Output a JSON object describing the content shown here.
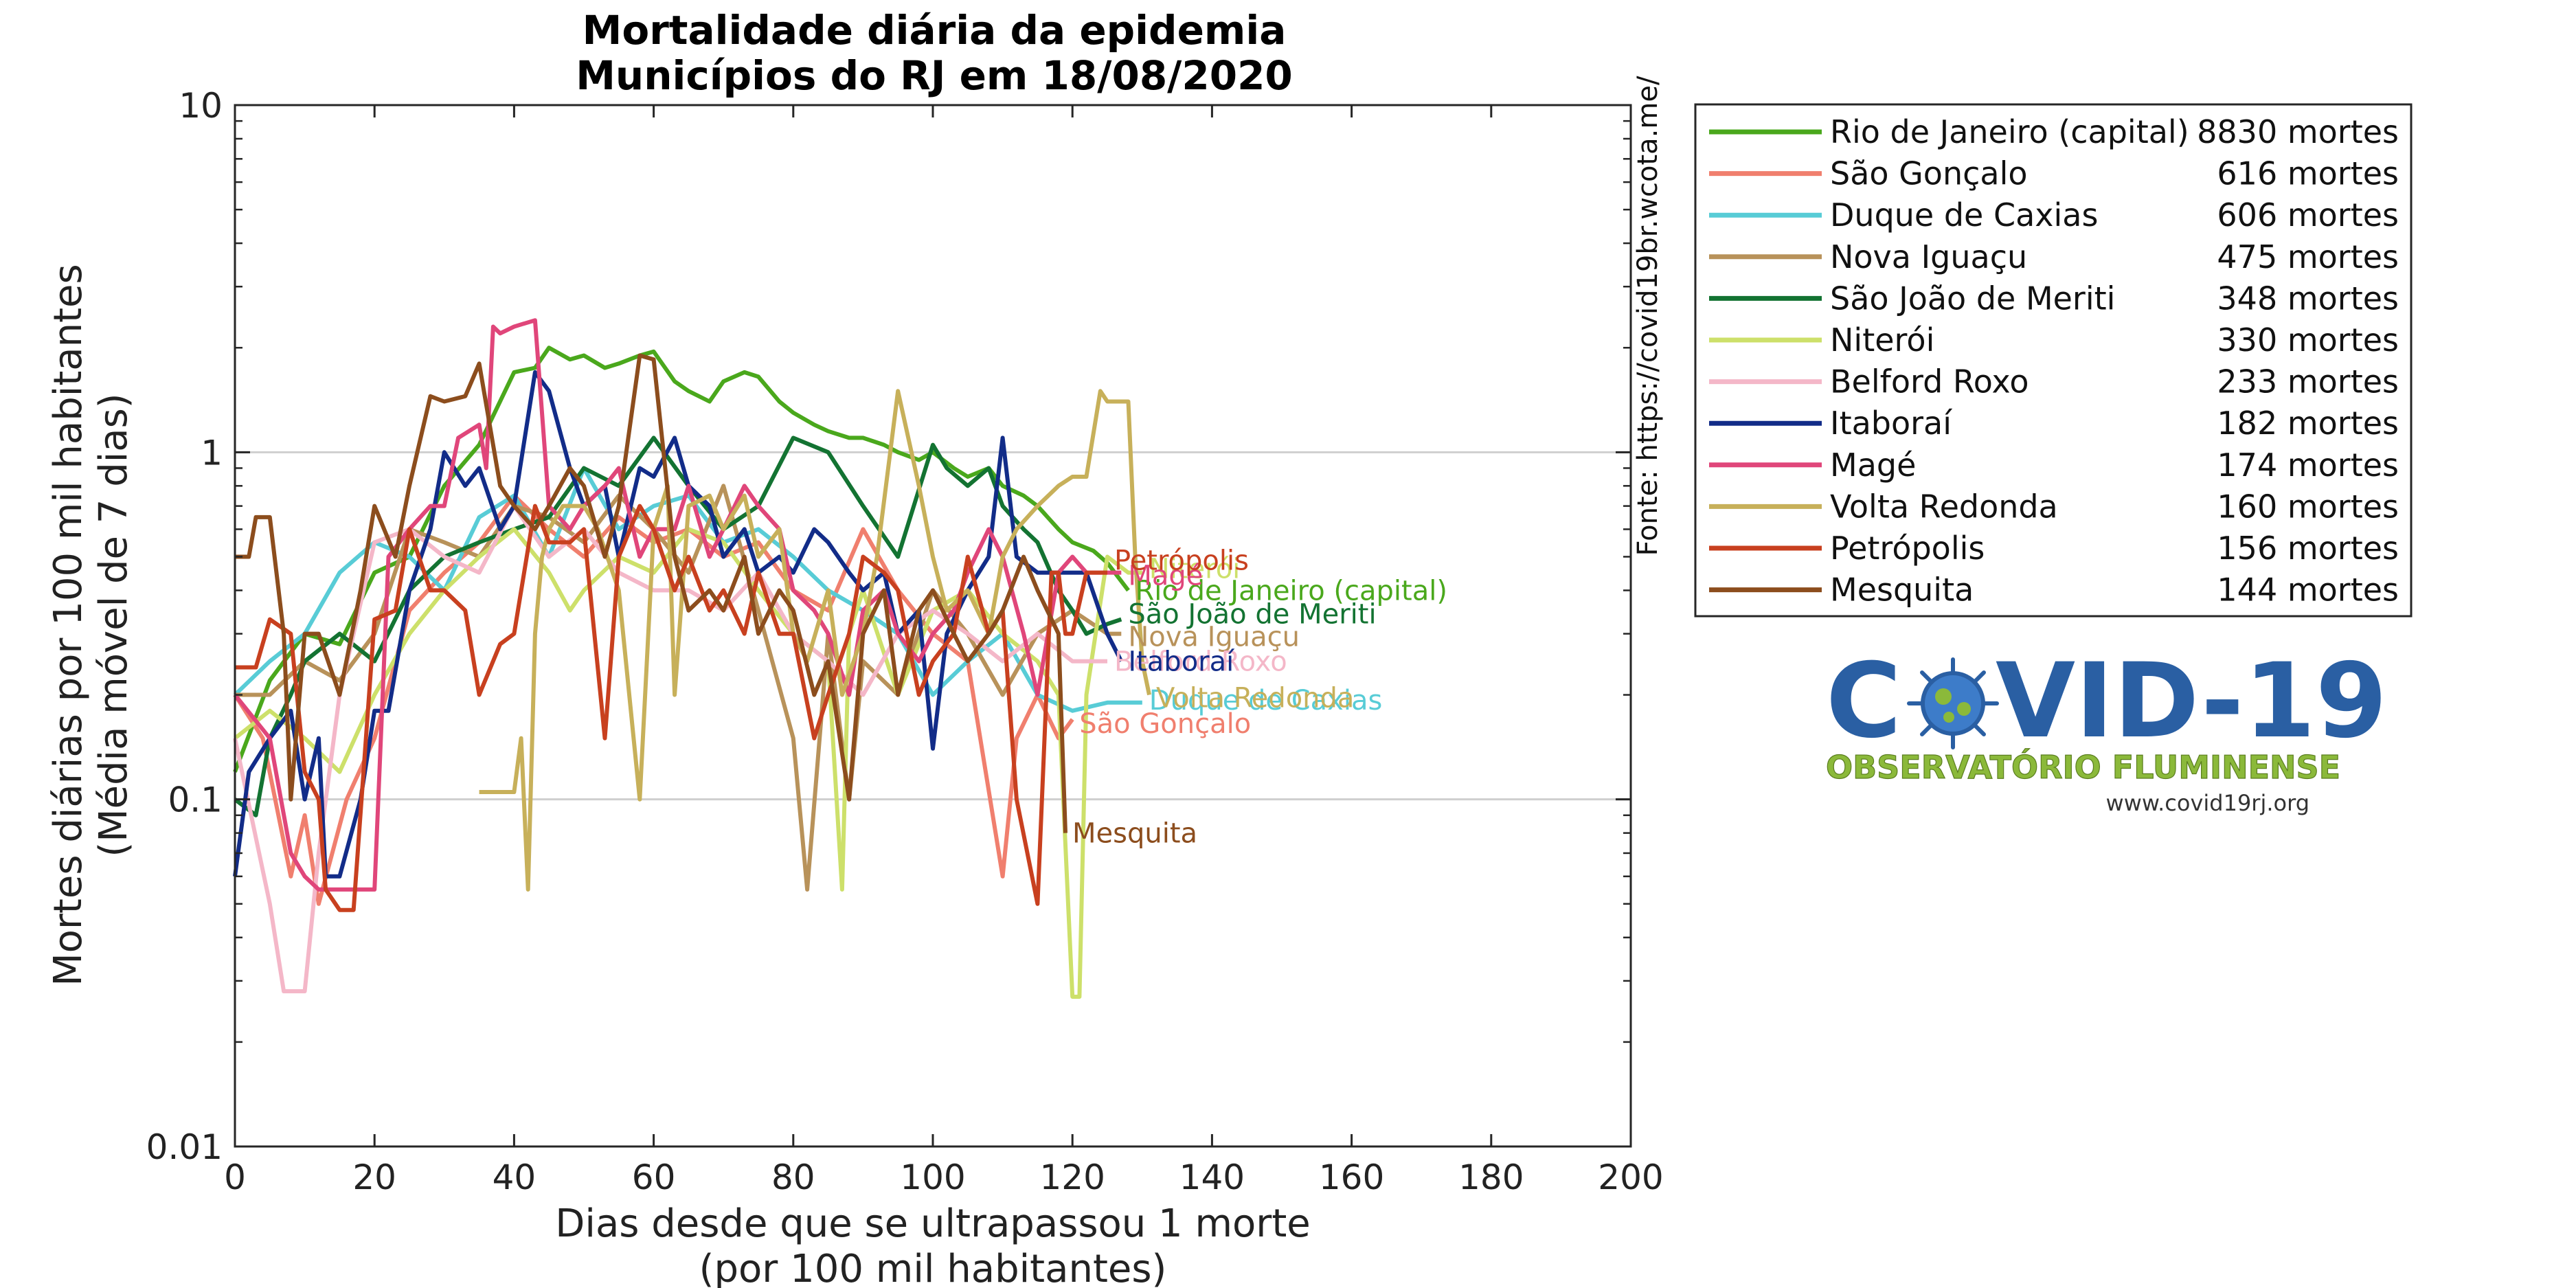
{
  "chart_data": {
    "type": "line",
    "title": [
      "Mortalidade diária da epidemia",
      "Municípios do RJ em 18/08/2020"
    ],
    "xlabel": [
      "Dias desde que se ultrapassou 1 morte",
      "(por 100 mil habitantes)"
    ],
    "ylabel": [
      "Mortes diárias por 100 mil habitantes",
      "(Média móvel de 7 dias)"
    ],
    "xlim": [
      0,
      200
    ],
    "ylim": [
      0.01,
      10
    ],
    "yscale": "log",
    "x_ticks": [
      0,
      20,
      40,
      60,
      80,
      100,
      120,
      140,
      160,
      180,
      200
    ],
    "y_ticks": [
      0.01,
      0.1,
      1,
      10
    ],
    "y_tick_labels": [
      "0.01",
      "0.1",
      "1",
      "10"
    ],
    "grid": "horizontal at major y ticks",
    "legend_position": "outside right, top",
    "source": "Fonte: https://covid19br.wcota.me/",
    "series": [
      {
        "name": "Rio de Janeiro (capital)",
        "short": "Rio de Janeiro (capital)",
        "deaths": "8830 mortes",
        "color": "#4aa81c",
        "x": [
          0,
          5,
          10,
          15,
          20,
          25,
          30,
          35,
          40,
          43,
          45,
          48,
          50,
          53,
          55,
          58,
          60,
          63,
          65,
          68,
          70,
          73,
          75,
          78,
          80,
          83,
          85,
          88,
          90,
          93,
          95,
          98,
          100,
          103,
          105,
          108,
          110,
          113,
          115,
          118,
          120,
          123,
          125,
          128
        ],
        "y": [
          0.12,
          0.22,
          0.3,
          0.28,
          0.45,
          0.5,
          0.8,
          1.05,
          1.7,
          1.75,
          2.0,
          1.85,
          1.9,
          1.75,
          1.8,
          1.9,
          1.95,
          1.6,
          1.5,
          1.4,
          1.6,
          1.7,
          1.65,
          1.4,
          1.3,
          1.2,
          1.15,
          1.1,
          1.1,
          1.05,
          1.0,
          0.95,
          1.0,
          0.9,
          0.85,
          0.9,
          0.8,
          0.75,
          0.7,
          0.6,
          0.55,
          0.52,
          0.48,
          0.4
        ]
      },
      {
        "name": "São Gonçalo",
        "short": "São Gonçalo",
        "deaths": "616 mortes",
        "color": "#f07f6e",
        "x": [
          0,
          4,
          8,
          10,
          12,
          16,
          20,
          25,
          30,
          35,
          40,
          45,
          50,
          55,
          60,
          65,
          70,
          75,
          80,
          85,
          90,
          95,
          100,
          105,
          110,
          112,
          115,
          118,
          120
        ],
        "y": [
          0.2,
          0.15,
          0.06,
          0.09,
          0.05,
          0.1,
          0.15,
          0.35,
          0.45,
          0.55,
          0.75,
          0.6,
          0.5,
          0.65,
          0.55,
          0.6,
          0.5,
          0.55,
          0.4,
          0.35,
          0.6,
          0.4,
          0.3,
          0.25,
          0.06,
          0.15,
          0.2,
          0.15,
          0.17
        ]
      },
      {
        "name": "Duque de Caxias",
        "short": "Duque de Caxias",
        "deaths": "606 mortes",
        "color": "#58ccd6",
        "x": [
          0,
          5,
          10,
          15,
          20,
          25,
          30,
          35,
          40,
          45,
          50,
          55,
          60,
          65,
          70,
          75,
          80,
          85,
          90,
          95,
          100,
          105,
          110,
          115,
          120,
          125,
          130
        ],
        "y": [
          0.2,
          0.25,
          0.3,
          0.45,
          0.55,
          0.5,
          0.4,
          0.65,
          0.75,
          0.5,
          0.9,
          0.6,
          0.7,
          0.75,
          0.55,
          0.6,
          0.5,
          0.4,
          0.35,
          0.3,
          0.2,
          0.25,
          0.3,
          0.2,
          0.18,
          0.19,
          0.19
        ]
      },
      {
        "name": "Nova Iguaçu",
        "short": "Nova Iguaçu",
        "deaths": "475 mortes",
        "color": "#b8925a",
        "x": [
          0,
          5,
          10,
          15,
          20,
          25,
          30,
          35,
          40,
          45,
          50,
          55,
          60,
          65,
          70,
          75,
          80,
          82,
          85,
          88,
          90,
          95,
          100,
          105,
          110,
          115,
          120,
          125,
          127
        ],
        "y": [
          0.2,
          0.2,
          0.25,
          0.22,
          0.3,
          0.6,
          0.55,
          0.5,
          0.7,
          0.65,
          0.55,
          0.75,
          0.6,
          0.45,
          0.8,
          0.35,
          0.15,
          0.055,
          0.3,
          0.1,
          0.25,
          0.2,
          0.4,
          0.3,
          0.2,
          0.3,
          0.35,
          0.3,
          0.3
        ]
      },
      {
        "name": "São João de Meriti",
        "short": "São João de Meriti",
        "deaths": "348 mortes",
        "color": "#137332",
        "x": [
          0,
          3,
          5,
          8,
          10,
          15,
          20,
          25,
          30,
          35,
          40,
          45,
          50,
          55,
          60,
          65,
          70,
          75,
          80,
          85,
          90,
          95,
          100,
          102,
          105,
          108,
          110,
          113,
          115,
          118,
          120,
          122,
          125,
          127
        ],
        "y": [
          0.1,
          0.09,
          0.15,
          0.2,
          0.25,
          0.3,
          0.25,
          0.4,
          0.5,
          0.55,
          0.6,
          0.65,
          0.9,
          0.8,
          1.1,
          0.8,
          0.6,
          0.7,
          1.1,
          1.0,
          0.7,
          0.5,
          1.05,
          0.9,
          0.8,
          0.9,
          0.7,
          0.6,
          0.55,
          0.4,
          0.35,
          0.3,
          0.32,
          0.33
        ]
      },
      {
        "name": "Niterói",
        "short": "Niterói",
        "deaths": "330 mortes",
        "color": "#cde06a",
        "x": [
          0,
          5,
          10,
          15,
          20,
          25,
          30,
          35,
          40,
          45,
          48,
          50,
          55,
          60,
          65,
          70,
          75,
          80,
          85,
          87,
          88,
          90,
          95,
          100,
          105,
          110,
          115,
          118,
          120,
          121,
          122,
          125,
          128,
          130
        ],
        "y": [
          0.15,
          0.18,
          0.15,
          0.12,
          0.2,
          0.3,
          0.4,
          0.5,
          0.6,
          0.45,
          0.35,
          0.4,
          0.5,
          0.45,
          0.6,
          0.55,
          0.4,
          0.3,
          0.25,
          0.055,
          0.3,
          0.4,
          0.2,
          0.35,
          0.4,
          0.3,
          0.25,
          0.2,
          0.027,
          0.027,
          0.2,
          0.5,
          0.45,
          0.45
        ]
      },
      {
        "name": "Belford Roxo",
        "short": "Belford Roxo",
        "deaths": "233 mortes",
        "color": "#f4b7c8",
        "x": [
          0,
          5,
          7,
          8,
          10,
          12,
          15,
          20,
          25,
          30,
          35,
          40,
          45,
          50,
          55,
          60,
          65,
          70,
          75,
          80,
          85,
          90,
          95,
          100,
          105,
          110,
          115,
          120,
          125
        ],
        "y": [
          0.15,
          0.05,
          0.028,
          0.028,
          0.028,
          0.07,
          0.2,
          0.55,
          0.6,
          0.5,
          0.45,
          0.7,
          0.5,
          0.6,
          0.45,
          0.4,
          0.4,
          0.35,
          0.45,
          0.3,
          0.25,
          0.2,
          0.3,
          0.35,
          0.3,
          0.25,
          0.3,
          0.25,
          0.25
        ]
      },
      {
        "name": "Itaboraí",
        "short": "Itaboraí",
        "deaths": "182 mortes",
        "color": "#122c88",
        "x": [
          0,
          2,
          5,
          8,
          10,
          12,
          13,
          15,
          18,
          20,
          22,
          25,
          28,
          30,
          33,
          35,
          38,
          40,
          43,
          45,
          48,
          50,
          53,
          55,
          58,
          60,
          63,
          65,
          68,
          70,
          73,
          75,
          78,
          80,
          83,
          85,
          88,
          90,
          93,
          95,
          98,
          100,
          102,
          105,
          108,
          110,
          112,
          115,
          118,
          120,
          122,
          125,
          127
        ],
        "y": [
          0.06,
          0.12,
          0.15,
          0.18,
          0.1,
          0.15,
          0.06,
          0.06,
          0.1,
          0.18,
          0.18,
          0.4,
          0.6,
          1.0,
          0.8,
          0.9,
          0.6,
          0.7,
          1.7,
          1.5,
          0.9,
          0.7,
          0.8,
          0.5,
          0.9,
          0.85,
          1.1,
          0.8,
          0.7,
          0.5,
          0.6,
          0.45,
          0.5,
          0.45,
          0.6,
          0.55,
          0.45,
          0.4,
          0.45,
          0.3,
          0.35,
          0.14,
          0.3,
          0.4,
          0.5,
          1.1,
          0.5,
          0.45,
          0.45,
          0.45,
          0.45,
          0.3,
          0.25
        ]
      },
      {
        "name": "Magé",
        "short": "Magé",
        "deaths": "174 mortes",
        "color": "#e0467a",
        "x": [
          0,
          5,
          8,
          10,
          12,
          15,
          18,
          20,
          22,
          25,
          28,
          30,
          32,
          35,
          36,
          37,
          38,
          40,
          43,
          45,
          48,
          50,
          53,
          55,
          58,
          60,
          63,
          65,
          68,
          70,
          73,
          75,
          78,
          80,
          83,
          85,
          88,
          90,
          93,
          95,
          98,
          100,
          103,
          105,
          108,
          110,
          113,
          115,
          118,
          120,
          122,
          125,
          127
        ],
        "y": [
          0.2,
          0.15,
          0.07,
          0.06,
          0.055,
          0.055,
          0.055,
          0.055,
          0.5,
          0.6,
          0.7,
          0.7,
          1.1,
          1.2,
          0.9,
          2.3,
          2.2,
          2.3,
          2.4,
          0.7,
          0.6,
          0.7,
          0.8,
          0.9,
          0.5,
          0.6,
          0.6,
          0.8,
          0.5,
          0.6,
          0.8,
          0.7,
          0.6,
          0.4,
          0.35,
          0.3,
          0.2,
          0.35,
          0.4,
          0.3,
          0.25,
          0.3,
          0.35,
          0.45,
          0.6,
          0.5,
          0.3,
          0.2,
          0.45,
          0.5,
          0.45,
          0.45,
          0.45
        ]
      },
      {
        "name": "Volta Redonda",
        "short": "Volta Redonda",
        "deaths": "160 mortes",
        "color": "#c7b05a",
        "x": [
          35,
          40,
          41,
          42,
          43,
          44,
          45,
          47,
          50,
          52,
          55,
          58,
          60,
          62,
          63,
          65,
          68,
          70,
          73,
          75,
          78,
          80,
          82,
          85,
          87,
          90,
          92,
          95,
          98,
          100,
          102,
          105,
          108,
          110,
          112,
          115,
          118,
          120,
          122,
          124,
          125,
          127,
          128,
          129,
          130,
          131
        ],
        "y": [
          0.105,
          0.105,
          0.15,
          0.055,
          0.3,
          0.5,
          0.6,
          0.7,
          0.7,
          0.6,
          0.4,
          0.1,
          0.6,
          0.8,
          0.2,
          0.7,
          0.75,
          0.6,
          0.75,
          0.5,
          0.6,
          0.3,
          0.25,
          0.4,
          0.2,
          0.3,
          0.5,
          1.5,
          0.8,
          0.5,
          0.35,
          0.4,
          0.3,
          0.5,
          0.6,
          0.7,
          0.8,
          0.85,
          0.85,
          1.5,
          1.4,
          1.4,
          1.4,
          0.5,
          0.25,
          0.2
        ]
      },
      {
        "name": "Petrópolis",
        "short": "Petrópolis",
        "deaths": "156 mortes",
        "color": "#c8401f",
        "x": [
          0,
          3,
          5,
          8,
          10,
          12,
          13,
          15,
          17,
          20,
          23,
          25,
          28,
          30,
          33,
          35,
          38,
          40,
          43,
          45,
          48,
          50,
          53,
          55,
          58,
          60,
          63,
          65,
          68,
          70,
          73,
          75,
          78,
          80,
          83,
          85,
          88,
          90,
          93,
          95,
          98,
          100,
          103,
          105,
          108,
          110,
          112,
          115,
          117,
          118,
          119,
          120,
          122,
          125
        ],
        "y": [
          0.24,
          0.24,
          0.33,
          0.3,
          0.12,
          0.1,
          0.055,
          0.048,
          0.048,
          0.33,
          0.35,
          0.6,
          0.4,
          0.4,
          0.35,
          0.2,
          0.28,
          0.3,
          0.7,
          0.55,
          0.55,
          0.6,
          0.15,
          0.5,
          0.7,
          0.6,
          0.4,
          0.5,
          0.35,
          0.4,
          0.3,
          0.45,
          0.3,
          0.3,
          0.15,
          0.2,
          0.3,
          0.5,
          0.45,
          0.4,
          0.2,
          0.25,
          0.3,
          0.5,
          0.3,
          0.35,
          0.1,
          0.05,
          0.45,
          0.45,
          0.3,
          0.3,
          0.45,
          0.45
        ]
      },
      {
        "name": "Mesquita",
        "short": "Mesquita",
        "deaths": "144 mortes",
        "color": "#8c4d1d",
        "x": [
          0,
          2,
          3,
          5,
          7,
          8,
          10,
          12,
          15,
          18,
          20,
          23,
          25,
          28,
          30,
          33,
          35,
          38,
          40,
          43,
          45,
          48,
          50,
          53,
          55,
          58,
          60,
          63,
          65,
          68,
          70,
          73,
          75,
          78,
          80,
          83,
          85,
          88,
          90,
          93,
          95,
          98,
          100,
          103,
          105,
          108,
          110,
          113,
          115,
          118,
          119
        ],
        "y": [
          0.5,
          0.5,
          0.65,
          0.65,
          0.3,
          0.1,
          0.3,
          0.3,
          0.2,
          0.4,
          0.7,
          0.5,
          0.8,
          1.45,
          1.4,
          1.45,
          1.8,
          0.8,
          0.7,
          0.6,
          0.7,
          0.9,
          0.8,
          0.5,
          0.7,
          1.9,
          1.85,
          0.5,
          0.35,
          0.4,
          0.35,
          0.5,
          0.3,
          0.4,
          0.35,
          0.2,
          0.25,
          0.1,
          0.3,
          0.4,
          0.2,
          0.35,
          0.4,
          0.3,
          0.25,
          0.3,
          0.35,
          0.5,
          0.4,
          0.3,
          0.08
        ]
      }
    ]
  },
  "logo": {
    "main_left": "C",
    "main_right": "VID-19",
    "subtitle": "OBSERVATÓRIO FLUMINENSE",
    "url": "www.covid19rj.org"
  }
}
